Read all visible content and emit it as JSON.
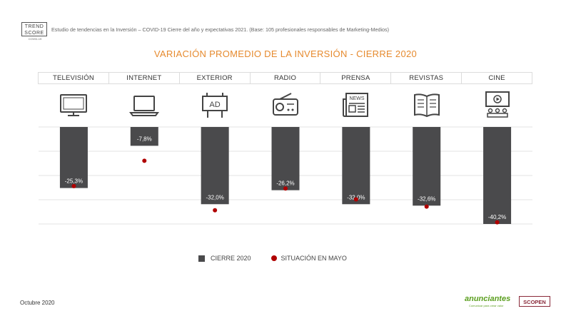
{
  "header": {
    "logo_line1": "TREND",
    "logo_line2": "SCORE",
    "logo_sub": "COVID-19",
    "study_text": "Estudio de tendencias en la Inversión – COVID-19 Cierre del año y expectativas 2021. (Base: 105 profesionales responsables de Marketing-Medios)"
  },
  "icons": [
    "tv-icon",
    "laptop-icon",
    "billboard-icon",
    "radio-icon",
    "newspaper-icon",
    "magazine-icon",
    "cinema-icon"
  ],
  "icon_ad_text": "AD",
  "icon_news_text": "NEWS",
  "chart_data": {
    "type": "bar",
    "title": "VARIACIÓN PROMEDIO DE LA INVERSIÓN - CIERRE 2020",
    "categories": [
      "TELEVISIÓN",
      "INTERNET",
      "EXTERIOR",
      "RADIO",
      "PRENSA",
      "REVISTAS",
      "CINE"
    ],
    "series": [
      {
        "name": "CIERRE 2020",
        "values": [
          -25.3,
          -7.8,
          -32.0,
          -26.2,
          -32.0,
          -32.6,
          -40.2
        ],
        "labels": [
          "-25,3%",
          "-7,8%",
          "-32,0%",
          "-26,2%",
          "-32,0%",
          "-32,6%",
          "-40,2%"
        ],
        "color": "#4a4a4c"
      },
      {
        "name": "SITUACIÓN EN MAYO",
        "values": [
          -24.5,
          -14.0,
          -34.5,
          -25.5,
          -30.0,
          -33.0,
          -39.5
        ],
        "color": "#b00000"
      }
    ],
    "ylim": [
      -40.2,
      0
    ],
    "grid": true,
    "legend": "bottom-center"
  },
  "footer": {
    "date": "Octubre 2020",
    "brand1": "anunciantes",
    "brand1_sub": "Comunicar para crear valor",
    "brand2": "SCOPEN"
  }
}
